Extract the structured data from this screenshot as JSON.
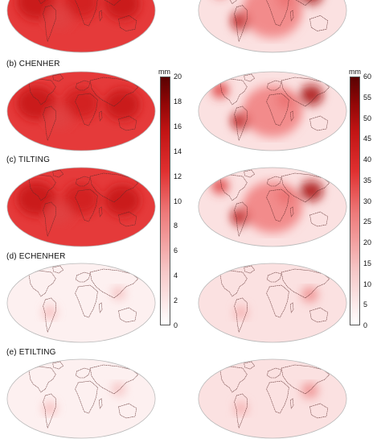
{
  "panels": [
    {
      "label": "(b) CHENHER"
    },
    {
      "label": "(c) TILTING"
    },
    {
      "label": "(d) ECHENHER"
    },
    {
      "label": "(e) ETILTING"
    }
  ],
  "colorbar_left": {
    "unit": "mm",
    "ticks": [
      "20",
      "18",
      "16",
      "14",
      "12",
      "10",
      "8",
      "6",
      "4",
      "2",
      "0"
    ]
  },
  "colorbar_right": {
    "unit": "mm",
    "ticks": [
      "60",
      "55",
      "50",
      "45",
      "40",
      "35",
      "30",
      "25",
      "20",
      "15",
      "10",
      "5",
      "0"
    ]
  },
  "colors": {
    "strong": "#e53a3a",
    "medium": "#f07c7c",
    "pale": "#fbe1e1",
    "dark": "#9a0a0a",
    "coast": "#5a2a2a"
  }
}
